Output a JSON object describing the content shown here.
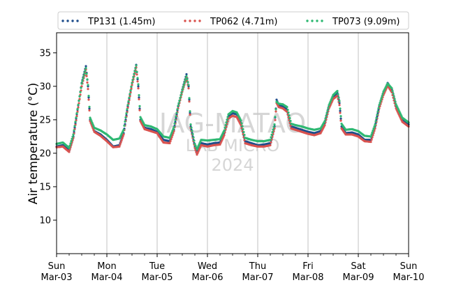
{
  "chart_data": {
    "type": "scatter",
    "title": "",
    "xlabel": "",
    "ylabel": "Air temperature (°C)",
    "ylim": [
      5,
      38
    ],
    "xlim": [
      "2024-03-03",
      "2024-03-10"
    ],
    "grid": "vertical",
    "legend_position": "top",
    "watermark": [
      "JAG-MATAO",
      "LAB MICRO",
      "2024"
    ],
    "y_ticks": [
      10,
      15,
      20,
      25,
      30,
      35
    ],
    "x_ticks": [
      {
        "date": "2024-03-03",
        "day": "Sun",
        "label": "Mar-03"
      },
      {
        "date": "2024-03-04",
        "day": "Mon",
        "label": "Mar-04"
      },
      {
        "date": "2024-03-05",
        "day": "Tue",
        "label": "Mar-05"
      },
      {
        "date": "2024-03-06",
        "day": "Wed",
        "label": "Mar-06"
      },
      {
        "date": "2024-03-07",
        "day": "Thu",
        "label": "Mar-07"
      },
      {
        "date": "2024-03-08",
        "day": "Fri",
        "label": "Mar-08"
      },
      {
        "date": "2024-03-09",
        "day": "Sat",
        "label": "Mar-09"
      },
      {
        "date": "2024-03-10",
        "day": "Sun",
        "label": "Mar-10"
      }
    ],
    "series": [
      {
        "name": "TP131 (1.45m)",
        "color": "#1f4e8c",
        "points": [
          [
            "2024-03-03 00:00",
            21.0
          ],
          [
            "2024-03-03 03:00",
            21.2
          ],
          [
            "2024-03-03 06:00",
            20.4
          ],
          [
            "2024-03-03 08:00",
            22.5
          ],
          [
            "2024-03-03 10:00",
            26.5
          ],
          [
            "2024-03-03 12:00",
            30.5
          ],
          [
            "2024-03-03 14:00",
            33.0
          ],
          [
            "2024-03-03 15:00",
            30.0
          ],
          [
            "2024-03-03 16:00",
            25.0
          ],
          [
            "2024-03-03 18:00",
            23.3
          ],
          [
            "2024-03-03 21:00",
            22.8
          ],
          [
            "2024-03-04 00:00",
            22.0
          ],
          [
            "2024-03-04 03:00",
            21.0
          ],
          [
            "2024-03-04 06:00",
            21.2
          ],
          [
            "2024-03-04 08:00",
            23.0
          ],
          [
            "2024-03-04 10:00",
            27.0
          ],
          [
            "2024-03-04 12:00",
            30.5
          ],
          [
            "2024-03-04 14:00",
            33.2
          ],
          [
            "2024-03-04 15:00",
            30.0
          ],
          [
            "2024-03-04 16:00",
            25.0
          ],
          [
            "2024-03-04 18:00",
            23.8
          ],
          [
            "2024-03-04 21:00",
            23.6
          ],
          [
            "2024-03-05 00:00",
            23.2
          ],
          [
            "2024-03-05 03:00",
            22.0
          ],
          [
            "2024-03-05 06:00",
            21.8
          ],
          [
            "2024-03-05 08:00",
            23.5
          ],
          [
            "2024-03-05 10:00",
            27.0
          ],
          [
            "2024-03-05 12:00",
            29.5
          ],
          [
            "2024-03-05 14:00",
            31.8
          ],
          [
            "2024-03-05 15:00",
            30.0
          ],
          [
            "2024-03-05 16:00",
            24.0
          ],
          [
            "2024-03-05 18:00",
            21.0
          ],
          [
            "2024-03-05 19:00",
            20.0
          ],
          [
            "2024-03-05 21:00",
            21.5
          ],
          [
            "2024-03-06 00:00",
            21.3
          ],
          [
            "2024-03-06 03:00",
            21.5
          ],
          [
            "2024-03-06 06:00",
            21.6
          ],
          [
            "2024-03-06 08:00",
            23.0
          ],
          [
            "2024-03-06 10:00",
            25.5
          ],
          [
            "2024-03-06 12:00",
            26.0
          ],
          [
            "2024-03-06 14:00",
            25.8
          ],
          [
            "2024-03-06 16:00",
            24.5
          ],
          [
            "2024-03-06 18:00",
            21.8
          ],
          [
            "2024-03-06 21:00",
            21.5
          ],
          [
            "2024-03-07 00:00",
            21.2
          ],
          [
            "2024-03-07 03:00",
            21.3
          ],
          [
            "2024-03-07 06:00",
            21.5
          ],
          [
            "2024-03-07 08:00",
            24.0
          ],
          [
            "2024-03-07 09:00",
            28.0
          ],
          [
            "2024-03-07 10:00",
            27.2
          ],
          [
            "2024-03-07 12:00",
            27.0
          ],
          [
            "2024-03-07 14:00",
            26.5
          ],
          [
            "2024-03-07 16:00",
            24.0
          ],
          [
            "2024-03-07 18:00",
            23.8
          ],
          [
            "2024-03-07 21:00",
            23.5
          ],
          [
            "2024-03-08 00:00",
            23.2
          ],
          [
            "2024-03-08 03:00",
            23.0
          ],
          [
            "2024-03-08 06:00",
            23.3
          ],
          [
            "2024-03-08 08:00",
            24.5
          ],
          [
            "2024-03-08 10:00",
            27.0
          ],
          [
            "2024-03-08 12:00",
            28.5
          ],
          [
            "2024-03-08 14:00",
            29.0
          ],
          [
            "2024-03-08 15:00",
            27.5
          ],
          [
            "2024-03-08 16:00",
            24.0
          ],
          [
            "2024-03-08 18:00",
            23.0
          ],
          [
            "2024-03-08 21:00",
            23.1
          ],
          [
            "2024-03-09 00:00",
            22.8
          ],
          [
            "2024-03-09 03:00",
            22.0
          ],
          [
            "2024-03-09 06:00",
            22.0
          ],
          [
            "2024-03-09 08:00",
            24.0
          ],
          [
            "2024-03-09 10:00",
            27.0
          ],
          [
            "2024-03-09 12:00",
            29.0
          ],
          [
            "2024-03-09 14:00",
            30.5
          ],
          [
            "2024-03-09 16:00",
            29.5
          ],
          [
            "2024-03-09 18:00",
            27.0
          ],
          [
            "2024-03-09 21:00",
            25.0
          ],
          [
            "2024-03-10 00:00",
            24.3
          ]
        ]
      },
      {
        "name": "TP062 (4.71m)",
        "color": "#d9534f",
        "points": [
          [
            "2024-03-03 00:00",
            20.9
          ],
          [
            "2024-03-03 03:00",
            21.0
          ],
          [
            "2024-03-03 06:00",
            20.2
          ],
          [
            "2024-03-03 08:00",
            22.3
          ],
          [
            "2024-03-03 10:00",
            26.2
          ],
          [
            "2024-03-03 12:00",
            30.0
          ],
          [
            "2024-03-03 14:00",
            32.5
          ],
          [
            "2024-03-03 15:00",
            29.6
          ],
          [
            "2024-03-03 16:00",
            24.8
          ],
          [
            "2024-03-03 18:00",
            23.2
          ],
          [
            "2024-03-03 21:00",
            22.6
          ],
          [
            "2024-03-04 00:00",
            21.8
          ],
          [
            "2024-03-04 03:00",
            20.9
          ],
          [
            "2024-03-04 06:00",
            21.0
          ],
          [
            "2024-03-04 08:00",
            22.8
          ],
          [
            "2024-03-04 10:00",
            26.8
          ],
          [
            "2024-03-04 12:00",
            30.2
          ],
          [
            "2024-03-04 14:00",
            32.8
          ],
          [
            "2024-03-04 15:00",
            29.7
          ],
          [
            "2024-03-04 16:00",
            24.8
          ],
          [
            "2024-03-04 18:00",
            23.6
          ],
          [
            "2024-03-04 21:00",
            23.3
          ],
          [
            "2024-03-05 00:00",
            23.0
          ],
          [
            "2024-03-05 03:00",
            21.6
          ],
          [
            "2024-03-05 06:00",
            21.5
          ],
          [
            "2024-03-05 08:00",
            23.3
          ],
          [
            "2024-03-05 10:00",
            26.7
          ],
          [
            "2024-03-05 12:00",
            29.2
          ],
          [
            "2024-03-05 14:00",
            31.3
          ],
          [
            "2024-03-05 15:00",
            29.7
          ],
          [
            "2024-03-05 16:00",
            23.8
          ],
          [
            "2024-03-05 18:00",
            20.8
          ],
          [
            "2024-03-05 19:00",
            19.8
          ],
          [
            "2024-03-05 21:00",
            21.2
          ],
          [
            "2024-03-06 00:00",
            21.0
          ],
          [
            "2024-03-06 03:00",
            21.2
          ],
          [
            "2024-03-06 06:00",
            21.3
          ],
          [
            "2024-03-06 08:00",
            22.7
          ],
          [
            "2024-03-06 10:00",
            25.2
          ],
          [
            "2024-03-06 12:00",
            25.6
          ],
          [
            "2024-03-06 14:00",
            25.4
          ],
          [
            "2024-03-06 16:00",
            24.2
          ],
          [
            "2024-03-06 18:00",
            21.5
          ],
          [
            "2024-03-06 21:00",
            21.2
          ],
          [
            "2024-03-07 00:00",
            21.0
          ],
          [
            "2024-03-07 03:00",
            21.0
          ],
          [
            "2024-03-07 06:00",
            21.2
          ],
          [
            "2024-03-07 08:00",
            23.7
          ],
          [
            "2024-03-07 09:00",
            27.5
          ],
          [
            "2024-03-07 10:00",
            26.9
          ],
          [
            "2024-03-07 12:00",
            26.7
          ],
          [
            "2024-03-07 14:00",
            26.2
          ],
          [
            "2024-03-07 16:00",
            23.7
          ],
          [
            "2024-03-07 18:00",
            23.5
          ],
          [
            "2024-03-07 21:00",
            23.2
          ],
          [
            "2024-03-08 00:00",
            22.9
          ],
          [
            "2024-03-08 03:00",
            22.7
          ],
          [
            "2024-03-08 06:00",
            23.0
          ],
          [
            "2024-03-08 08:00",
            24.2
          ],
          [
            "2024-03-08 10:00",
            26.7
          ],
          [
            "2024-03-08 12:00",
            28.1
          ],
          [
            "2024-03-08 14:00",
            28.6
          ],
          [
            "2024-03-08 15:00",
            27.2
          ],
          [
            "2024-03-08 16:00",
            23.7
          ],
          [
            "2024-03-08 18:00",
            22.8
          ],
          [
            "2024-03-08 21:00",
            22.8
          ],
          [
            "2024-03-09 00:00",
            22.5
          ],
          [
            "2024-03-09 03:00",
            21.8
          ],
          [
            "2024-03-09 06:00",
            21.7
          ],
          [
            "2024-03-09 08:00",
            23.7
          ],
          [
            "2024-03-09 10:00",
            26.7
          ],
          [
            "2024-03-09 12:00",
            28.7
          ],
          [
            "2024-03-09 14:00",
            30.1
          ],
          [
            "2024-03-09 16:00",
            29.1
          ],
          [
            "2024-03-09 18:00",
            26.7
          ],
          [
            "2024-03-09 21:00",
            24.7
          ],
          [
            "2024-03-10 00:00",
            24.0
          ]
        ]
      },
      {
        "name": "TP073 (9.09m)",
        "color": "#2eb872",
        "points": [
          [
            "2024-03-03 00:00",
            21.4
          ],
          [
            "2024-03-03 03:00",
            21.6
          ],
          [
            "2024-03-03 06:00",
            20.8
          ],
          [
            "2024-03-03 08:00",
            22.8
          ],
          [
            "2024-03-03 10:00",
            26.6
          ],
          [
            "2024-03-03 12:00",
            30.4
          ],
          [
            "2024-03-03 14:00",
            32.7
          ],
          [
            "2024-03-03 15:00",
            30.2
          ],
          [
            "2024-03-03 16:00",
            25.3
          ],
          [
            "2024-03-03 18:00",
            23.8
          ],
          [
            "2024-03-03 21:00",
            23.4
          ],
          [
            "2024-03-04 00:00",
            22.8
          ],
          [
            "2024-03-04 03:00",
            22.0
          ],
          [
            "2024-03-04 06:00",
            22.2
          ],
          [
            "2024-03-04 08:00",
            23.5
          ],
          [
            "2024-03-04 10:00",
            27.2
          ],
          [
            "2024-03-04 12:00",
            30.5
          ],
          [
            "2024-03-04 14:00",
            33.1
          ],
          [
            "2024-03-04 15:00",
            30.3
          ],
          [
            "2024-03-04 16:00",
            25.4
          ],
          [
            "2024-03-04 18:00",
            24.2
          ],
          [
            "2024-03-04 21:00",
            24.0
          ],
          [
            "2024-03-05 00:00",
            23.6
          ],
          [
            "2024-03-05 03:00",
            22.5
          ],
          [
            "2024-03-05 06:00",
            22.3
          ],
          [
            "2024-03-05 08:00",
            23.9
          ],
          [
            "2024-03-05 10:00",
            27.1
          ],
          [
            "2024-03-05 12:00",
            29.4
          ],
          [
            "2024-03-05 14:00",
            31.5
          ],
          [
            "2024-03-05 15:00",
            30.2
          ],
          [
            "2024-03-05 16:00",
            24.3
          ],
          [
            "2024-03-05 18:00",
            21.4
          ],
          [
            "2024-03-05 19:00",
            20.6
          ],
          [
            "2024-03-05 21:00",
            22.0
          ],
          [
            "2024-03-06 00:00",
            21.9
          ],
          [
            "2024-03-06 03:00",
            22.0
          ],
          [
            "2024-03-06 06:00",
            22.1
          ],
          [
            "2024-03-06 08:00",
            23.4
          ],
          [
            "2024-03-06 10:00",
            25.8
          ],
          [
            "2024-03-06 12:00",
            26.3
          ],
          [
            "2024-03-06 14:00",
            26.1
          ],
          [
            "2024-03-06 16:00",
            24.9
          ],
          [
            "2024-03-06 18:00",
            22.3
          ],
          [
            "2024-03-06 21:00",
            22.0
          ],
          [
            "2024-03-07 00:00",
            21.8
          ],
          [
            "2024-03-07 03:00",
            21.8
          ],
          [
            "2024-03-07 06:00",
            22.0
          ],
          [
            "2024-03-07 08:00",
            24.3
          ],
          [
            "2024-03-07 09:00",
            27.7
          ],
          [
            "2024-03-07 10:00",
            27.4
          ],
          [
            "2024-03-07 12:00",
            27.3
          ],
          [
            "2024-03-07 14:00",
            26.9
          ],
          [
            "2024-03-07 16:00",
            24.4
          ],
          [
            "2024-03-07 18:00",
            24.2
          ],
          [
            "2024-03-07 21:00",
            24.0
          ],
          [
            "2024-03-08 00:00",
            23.7
          ],
          [
            "2024-03-08 03:00",
            23.5
          ],
          [
            "2024-03-08 06:00",
            23.7
          ],
          [
            "2024-03-08 08:00",
            24.8
          ],
          [
            "2024-03-08 10:00",
            27.2
          ],
          [
            "2024-03-08 12:00",
            28.7
          ],
          [
            "2024-03-08 14:00",
            29.3
          ],
          [
            "2024-03-08 15:00",
            27.8
          ],
          [
            "2024-03-08 16:00",
            24.4
          ],
          [
            "2024-03-08 18:00",
            23.5
          ],
          [
            "2024-03-08 21:00",
            23.6
          ],
          [
            "2024-03-09 00:00",
            23.3
          ],
          [
            "2024-03-09 03:00",
            22.6
          ],
          [
            "2024-03-09 06:00",
            22.5
          ],
          [
            "2024-03-09 08:00",
            24.3
          ],
          [
            "2024-03-09 10:00",
            27.2
          ],
          [
            "2024-03-09 12:00",
            29.2
          ],
          [
            "2024-03-09 14:00",
            30.4
          ],
          [
            "2024-03-09 16:00",
            29.7
          ],
          [
            "2024-03-09 18:00",
            27.3
          ],
          [
            "2024-03-09 21:00",
            25.3
          ],
          [
            "2024-03-10 00:00",
            24.6
          ]
        ]
      }
    ]
  }
}
